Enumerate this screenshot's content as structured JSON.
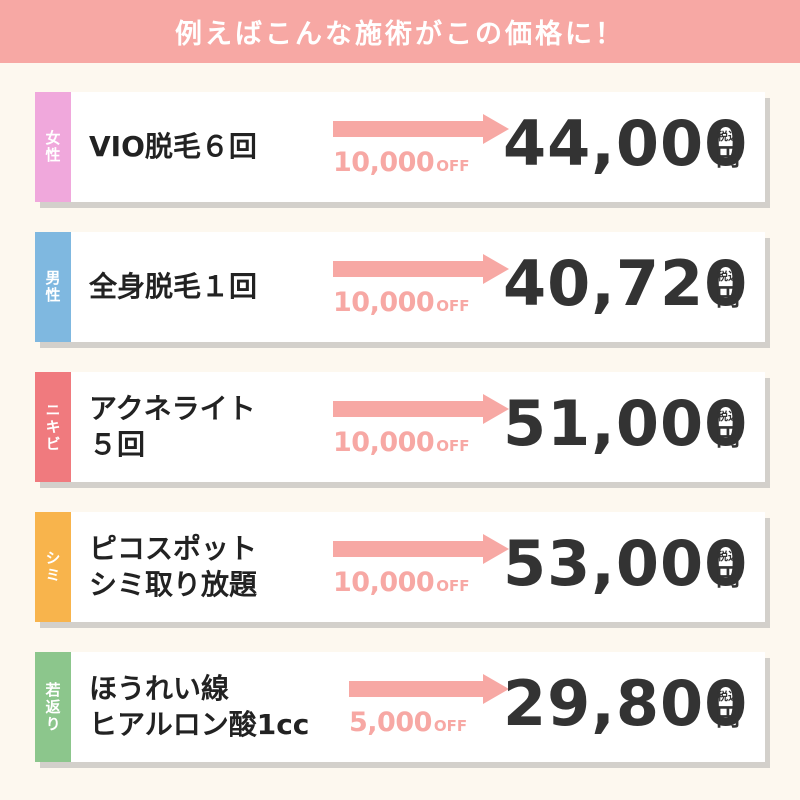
{
  "header": {
    "title": "例えばこんな施術がこの価格に！"
  },
  "colors": {
    "header_bg": "#f7a8a4",
    "tag_female": "#f0a8dc",
    "tag_male": "#7fb8e0",
    "tag_acne": "#f07a7e",
    "tag_spot": "#f8b44c",
    "tag_young": "#8cc68c",
    "arrow": "#f7a8a4"
  },
  "items": [
    {
      "tag": "女性",
      "title_lines": [
        "VIO脱毛６回",
        ""
      ],
      "discount": "10,000",
      "discount_suffix": "OFF",
      "price": "44,000",
      "tax_label": "税込",
      "currency": "円"
    },
    {
      "tag": "男性",
      "title_lines": [
        "全身脱毛１回",
        ""
      ],
      "discount": "10,000",
      "discount_suffix": "OFF",
      "price": "40,720",
      "tax_label": "税込",
      "currency": "円"
    },
    {
      "tag": "ニキビ",
      "title_lines": [
        "アクネライト",
        "５回"
      ],
      "discount": "10,000",
      "discount_suffix": "OFF",
      "price": "51,000",
      "tax_label": "税込",
      "currency": "円"
    },
    {
      "tag": "シミ",
      "title_lines": [
        "ピコスポット",
        "シミ取り放題"
      ],
      "discount": "10,000",
      "discount_suffix": "OFF",
      "price": "53,000",
      "tax_label": "税込",
      "currency": "円"
    },
    {
      "tag": "若返り",
      "title_lines": [
        "ほうれい線",
        "ヒアルロン酸1cc"
      ],
      "discount": "5,000",
      "discount_suffix": "OFF",
      "price": "29,800",
      "tax_label": "税込",
      "currency": "円"
    }
  ]
}
